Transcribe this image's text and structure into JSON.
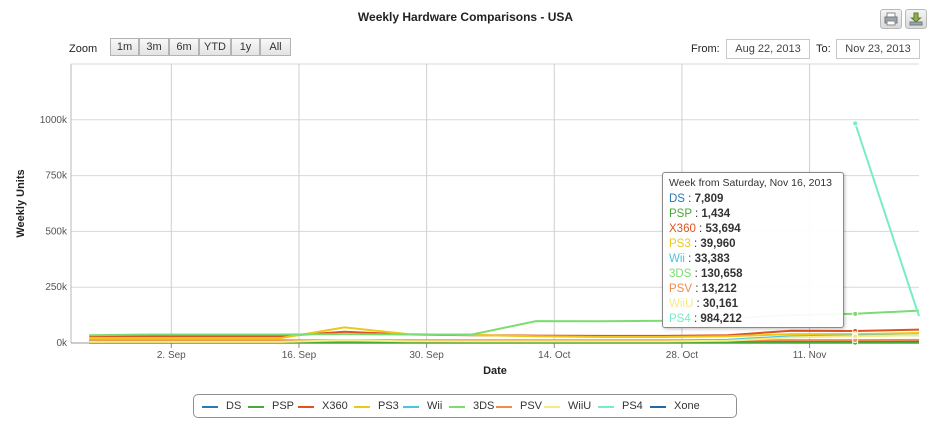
{
  "title": "Weekly Hardware Comparisons - USA",
  "toolbar": {
    "print_icon": "printer-icon",
    "export_icon": "download-icon"
  },
  "range_selector": {
    "zoom_label": "Zoom",
    "buttons": [
      "1m",
      "3m",
      "6m",
      "YTD",
      "1y",
      "All"
    ],
    "from_label": "From:",
    "from_value": "Aug 22, 2013",
    "to_label": "To:",
    "to_value": "Nov 23, 2013"
  },
  "colors": {
    "DS": "#2a7ab8",
    "PSP": "#48a83a",
    "X360": "#e0521f",
    "PS3": "#ecc81a",
    "Wii": "#4cc4e0",
    "3DS": "#7cdc72",
    "PSV": "#f08a4e",
    "WiiU": "#f6ea82",
    "PS4": "#78ecc8",
    "Xone": "#2468a8"
  },
  "tooltip": {
    "header": "Week from Saturday, Nov 16, 2013",
    "rows": [
      {
        "name": "DS",
        "value": "7,809"
      },
      {
        "name": "PSP",
        "value": "1,434"
      },
      {
        "name": "X360",
        "value": "53,694"
      },
      {
        "name": "PS3",
        "value": "39,960"
      },
      {
        "name": "Wii",
        "value": "33,383"
      },
      {
        "name": "3DS",
        "value": "130,658"
      },
      {
        "name": "PSV",
        "value": "13,212"
      },
      {
        "name": "WiiU",
        "value": "30,161"
      },
      {
        "name": "PS4",
        "value": "984,212"
      }
    ]
  },
  "chart_data": {
    "type": "line",
    "title": "Weekly Hardware Comparisons - USA",
    "xlabel": "Date",
    "ylabel": "Weekly Units",
    "x_tick_labels": [
      "2. Sep",
      "16. Sep",
      "30. Sep",
      "14. Oct",
      "28. Oct",
      "11. Nov"
    ],
    "y_tick_labels": [
      "0k",
      "250k",
      "500k",
      "750k",
      "1000k"
    ],
    "y_ticks": [
      0,
      250000,
      500000,
      750000,
      1000000
    ],
    "ylim": [
      0,
      1250000
    ],
    "xlim": [
      "2013-08-22",
      "2013-11-23"
    ],
    "grid": true,
    "legend_position": "bottom",
    "x": [
      "2013-08-24",
      "2013-08-31",
      "2013-09-07",
      "2013-09-14",
      "2013-09-21",
      "2013-09-28",
      "2013-10-05",
      "2013-10-12",
      "2013-10-19",
      "2013-10-26",
      "2013-11-02",
      "2013-11-09",
      "2013-11-16",
      "2013-11-23"
    ],
    "series": [
      {
        "name": "DS",
        "values": [
          8000,
          8000,
          8000,
          8000,
          9000,
          8000,
          8000,
          8000,
          7500,
          7500,
          7500,
          7800,
          7809,
          9000
        ]
      },
      {
        "name": "PSP",
        "values": [
          1500,
          1500,
          1500,
          1500,
          1500,
          1500,
          1500,
          1500,
          1400,
          1400,
          1400,
          1400,
          1434,
          1500
        ]
      },
      {
        "name": "X360",
        "values": [
          30000,
          30000,
          30000,
          30000,
          50000,
          38000,
          35000,
          33000,
          32000,
          32000,
          35000,
          55000,
          53694,
          60000
        ]
      },
      {
        "name": "PS3",
        "values": [
          22000,
          22000,
          22000,
          22000,
          70000,
          40000,
          36000,
          30000,
          27000,
          27000,
          30000,
          40000,
          39960,
          45000
        ]
      },
      {
        "name": "Wii",
        "values": [
          10000,
          10000,
          10000,
          10000,
          10000,
          10000,
          10000,
          10000,
          10000,
          10000,
          15000,
          30000,
          33383,
          35000
        ]
      },
      {
        "name": "3DS",
        "values": [
          35000,
          38000,
          38000,
          38000,
          40000,
          38000,
          38000,
          98000,
          97000,
          100000,
          110000,
          125000,
          130658,
          145000
        ]
      },
      {
        "name": "PSV",
        "values": [
          12000,
          12000,
          12000,
          12000,
          12000,
          12000,
          12000,
          12000,
          12000,
          12000,
          12000,
          13000,
          13212,
          14000
        ]
      },
      {
        "name": "WiiU",
        "values": [
          5000,
          5000,
          5000,
          5000,
          12000,
          8000,
          7000,
          7000,
          7000,
          7000,
          10000,
          25000,
          30161,
          35000
        ]
      },
      {
        "name": "PS4",
        "values": [
          null,
          null,
          null,
          null,
          null,
          null,
          null,
          null,
          null,
          null,
          null,
          null,
          984212,
          120000
        ]
      },
      {
        "name": "Xone",
        "values": [
          null,
          null,
          null,
          null,
          null,
          null,
          null,
          null,
          null,
          null,
          null,
          null,
          null,
          null
        ]
      }
    ]
  }
}
